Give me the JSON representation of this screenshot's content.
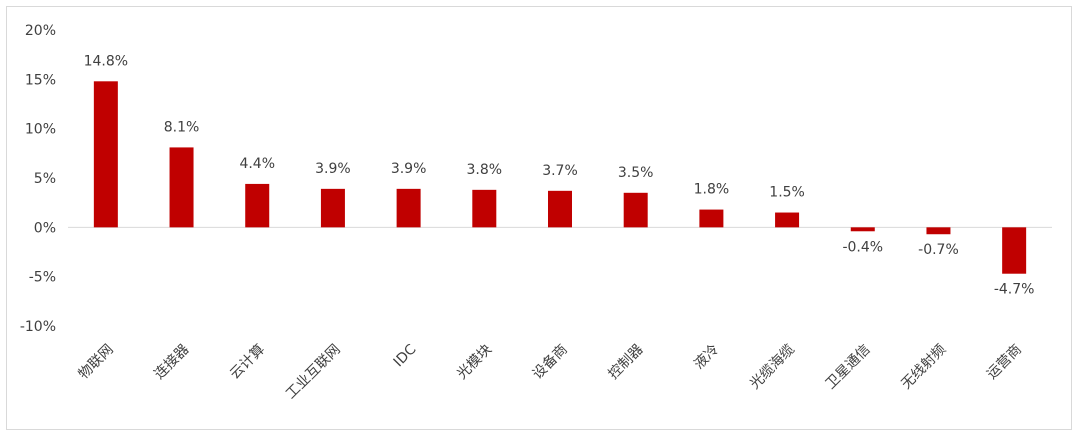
{
  "chart_data": {
    "type": "bar",
    "categories": [
      "物联网",
      "连接器",
      "云计算",
      "工业互联网",
      "IDC",
      "光模块",
      "设备商",
      "控制器",
      "液冷",
      "光缆海缆",
      "卫星通信",
      "无线射频",
      "运营商"
    ],
    "values": [
      14.8,
      8.1,
      4.4,
      3.9,
      3.9,
      3.8,
      3.7,
      3.5,
      1.8,
      1.5,
      -0.4,
      -0.7,
      -4.7
    ],
    "data_labels": [
      "14.8%",
      "8.1%",
      "4.4%",
      "3.9%",
      "3.9%",
      "3.8%",
      "3.7%",
      "3.5%",
      "1.8%",
      "1.5%",
      "-0.4%",
      "-0.7%",
      "-4.7%"
    ],
    "ylim": [
      -10,
      20
    ],
    "yticks": [
      20,
      15,
      10,
      5,
      0,
      -5,
      -10
    ],
    "ytick_labels": [
      "20%",
      "15%",
      "10%",
      "5%",
      "0%",
      "-5%",
      "-10%"
    ],
    "title": "",
    "xlabel": "",
    "ylabel": "",
    "grid": false,
    "legend": "none",
    "bar_color": "#c00000"
  }
}
